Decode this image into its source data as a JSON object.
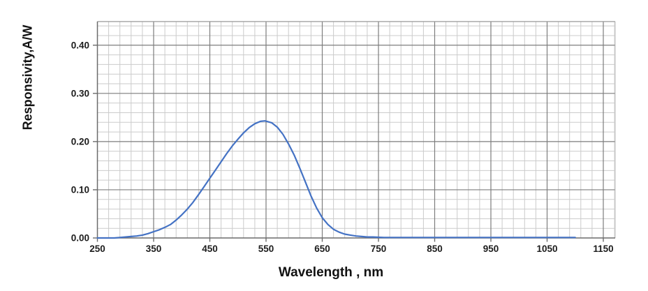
{
  "chart_data": {
    "type": "line",
    "title": "",
    "xlabel": "Wavelength , nm",
    "ylabel": "Responsivity,A/W",
    "x_tick_labels": [
      "250",
      "350",
      "450",
      "550",
      "650",
      "750",
      "850",
      "950",
      "1050",
      "1150"
    ],
    "x_tick_values": [
      250,
      350,
      450,
      550,
      650,
      750,
      850,
      950,
      1050,
      1150
    ],
    "y_tick_labels": [
      "0.00",
      "0.10",
      "0.20",
      "0.30",
      "0.40"
    ],
    "y_tick_values": [
      0.0,
      0.1,
      0.2,
      0.3,
      0.4
    ],
    "xlim": [
      250,
      1172
    ],
    "ylim": [
      0,
      0.449
    ],
    "x_major_step": 100,
    "x_minor_step": 20,
    "y_major_step": 0.1,
    "y_minor_step": 0.02,
    "grid": "major-and-minor",
    "legend_position": "none",
    "colors": {
      "line": "#4472C4",
      "major_grid": "#7d7d7d",
      "minor_grid": "#cbcbcb",
      "axis": "#6b6b6b",
      "outer_border": "#c2c2c2",
      "top_border": "#9a9a9a",
      "text": "#1c1c1c"
    },
    "peak": {
      "wavelength_nm": 548,
      "responsivity_aw": 0.243
    },
    "series": [
      {
        "name": "Responsivity",
        "x": [
          250,
          260,
          270,
          280,
          290,
          300,
          310,
          320,
          330,
          340,
          350,
          360,
          370,
          380,
          390,
          400,
          410,
          420,
          430,
          440,
          450,
          460,
          470,
          480,
          490,
          500,
          510,
          520,
          530,
          540,
          548,
          560,
          570,
          580,
          590,
          600,
          610,
          620,
          630,
          640,
          650,
          660,
          670,
          680,
          690,
          700,
          710,
          720,
          730,
          740,
          750,
          760,
          780,
          800,
          850,
          900,
          950,
          1000,
          1050,
          1100
        ],
        "y": [
          0,
          0,
          0,
          0,
          0.001,
          0.002,
          0.003,
          0.004,
          0.006,
          0.009,
          0.013,
          0.017,
          0.022,
          0.028,
          0.037,
          0.048,
          0.06,
          0.074,
          0.09,
          0.107,
          0.124,
          0.141,
          0.158,
          0.175,
          0.191,
          0.205,
          0.218,
          0.229,
          0.237,
          0.242,
          0.243,
          0.239,
          0.23,
          0.215,
          0.195,
          0.172,
          0.145,
          0.116,
          0.087,
          0.062,
          0.042,
          0.028,
          0.018,
          0.012,
          0.008,
          0.006,
          0.004,
          0.003,
          0.002,
          0.002,
          0.0015,
          0.001,
          0.001,
          0.001,
          0.001,
          0.001,
          0.001,
          0.001,
          0.001,
          0.001
        ]
      }
    ]
  }
}
